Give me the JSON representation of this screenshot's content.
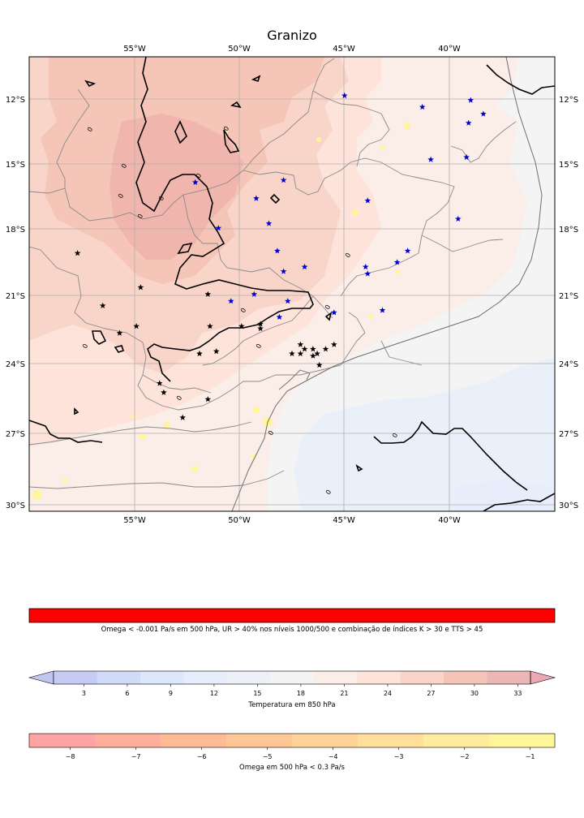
{
  "title": "Granizo",
  "map": {
    "lon_ticks": [
      "55°W",
      "50°W",
      "45°W",
      "40°W"
    ],
    "lat_ticks": [
      "12°S",
      "15°S",
      "18°S",
      "21°S",
      "24°S",
      "27°S",
      "30°S"
    ],
    "extent": {
      "lon_min": -60,
      "lon_max": -35,
      "lat_min": -30.3,
      "lat_max": -10.4
    },
    "contour_label": "0",
    "stars_blue": [
      [
        -45.0,
        -12.1
      ],
      [
        -41.3,
        -12.6
      ],
      [
        -39.0,
        -12.3
      ],
      [
        -38.4,
        -12.9
      ],
      [
        -39.1,
        -13.3
      ],
      [
        -52.1,
        -15.9
      ],
      [
        -47.9,
        -15.8
      ],
      [
        -40.9,
        -14.9
      ],
      [
        -39.2,
        -14.8
      ],
      [
        -49.2,
        -16.6
      ],
      [
        -43.9,
        -16.7
      ],
      [
        -51.0,
        -17.9
      ],
      [
        -48.6,
        -17.7
      ],
      [
        -39.6,
        -17.5
      ],
      [
        -48.2,
        -18.9
      ],
      [
        -42.0,
        -18.9
      ],
      [
        -47.9,
        -19.8
      ],
      [
        -46.9,
        -19.6
      ],
      [
        -44.0,
        -19.6
      ],
      [
        -43.9,
        -19.9
      ],
      [
        -42.5,
        -19.4
      ],
      [
        -49.3,
        -20.8
      ],
      [
        -50.4,
        -21.1
      ],
      [
        -47.7,
        -21.1
      ],
      [
        -48.1,
        -21.8
      ],
      [
        -45.5,
        -21.6
      ],
      [
        -43.2,
        -21.5
      ]
    ],
    "stars_black": [
      [
        -57.7,
        -19.0
      ],
      [
        -54.7,
        -20.5
      ],
      [
        -56.5,
        -21.3
      ],
      [
        -54.9,
        -22.2
      ],
      [
        -55.7,
        -22.5
      ],
      [
        -51.5,
        -20.8
      ],
      [
        -51.4,
        -22.2
      ],
      [
        -49.9,
        -22.2
      ],
      [
        -49.0,
        -22.1
      ],
      [
        -49.0,
        -22.3
      ],
      [
        -51.1,
        -23.3
      ],
      [
        -51.9,
        -23.4
      ],
      [
        -47.1,
        -23.0
      ],
      [
        -46.9,
        -23.2
      ],
      [
        -47.1,
        -23.4
      ],
      [
        -47.5,
        -23.4
      ],
      [
        -46.5,
        -23.2
      ],
      [
        -46.3,
        -23.4
      ],
      [
        -46.5,
        -23.5
      ],
      [
        -45.9,
        -23.2
      ],
      [
        -45.5,
        -23.0
      ],
      [
        -46.2,
        -23.9
      ],
      [
        -53.8,
        -24.7
      ],
      [
        -53.6,
        -25.1
      ],
      [
        -51.5,
        -25.4
      ],
      [
        -52.7,
        -26.2
      ]
    ]
  },
  "colorbars": {
    "hail": {
      "color": "#ff0000",
      "label": "Omega < -0.001 Pa/s em 500 hPa, UR > 40% nos níveis 1000/500 e combinação de índices K > 30 e TTS > 45"
    },
    "temperature": {
      "label": "Temperatura em 850 hPa",
      "ticks": [
        "3",
        "6",
        "9",
        "12",
        "15",
        "18",
        "21",
        "24",
        "27",
        "30",
        "33"
      ],
      "colors": [
        "#c5cbf2",
        "#d0dbf8",
        "#dde6fb",
        "#e8edfb",
        "#eef0f8",
        "#f4f4f4",
        "#fbede7",
        "#fde3da",
        "#f9d4c8",
        "#f5c4b8",
        "#eab6b6"
      ],
      "under_color": "#bfc6f0",
      "over_color": "#e8a9b4"
    },
    "omega": {
      "label": "Omega em 500 hPa < 0.3 Pa/s",
      "ticks": [
        "−8",
        "−7",
        "−6",
        "−5",
        "−4",
        "−3",
        "−2",
        "−1"
      ],
      "colors": [
        "#ffa3a3",
        "#ffaf9b",
        "#ffbb96",
        "#ffc795",
        "#ffd397",
        "#ffdf9b",
        "#ffeb9d",
        "#fff59b"
      ]
    }
  }
}
